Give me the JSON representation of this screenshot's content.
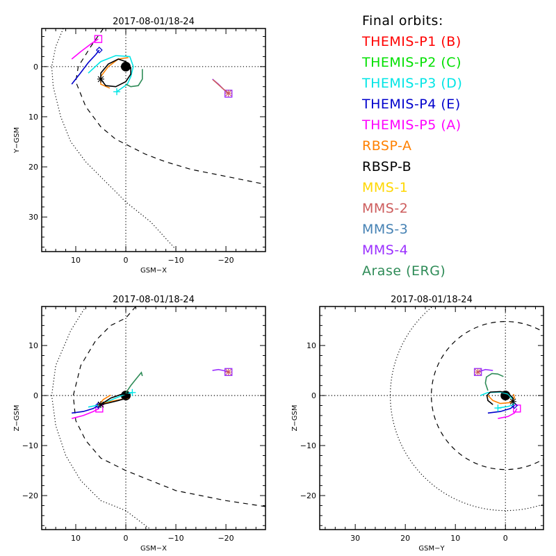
{
  "chart_data": [
    {
      "type": "scatter",
      "id": "xy",
      "title": "2017-08-01/18-24",
      "xlabel": "GSM-X",
      "ylabel": "Y-GSM",
      "xlim": [
        16.8,
        -27.9
      ],
      "ylim": [
        -7.6,
        36.9
      ],
      "xticks": [
        10,
        0,
        -10,
        -20
      ],
      "yticks": [
        0,
        10,
        20,
        30
      ],
      "boundaries": {
        "magnetopause_dashed": [
          [
            4.5,
            -7.6
          ],
          [
            7,
            -4
          ],
          [
            9.5,
            0
          ],
          [
            10,
            3
          ],
          [
            8,
            8
          ],
          [
            5,
            12
          ],
          [
            2,
            14.5
          ],
          [
            0,
            15.5
          ],
          [
            -4,
            17.5
          ],
          [
            -8,
            19
          ],
          [
            -13,
            20.5
          ],
          [
            -18,
            21.5
          ],
          [
            -22,
            22.3
          ],
          [
            -27.9,
            23.5
          ]
        ],
        "bow_shock_dotted": [
          [
            12.5,
            -7.6
          ],
          [
            14,
            -4
          ],
          [
            14.8,
            0
          ],
          [
            14.5,
            4
          ],
          [
            13,
            10
          ],
          [
            11,
            15
          ],
          [
            8,
            19
          ],
          [
            4,
            23
          ],
          [
            0,
            27
          ],
          [
            -5,
            31
          ],
          [
            -10,
            36.5
          ]
        ]
      },
      "series": [
        {
          "name": "THEMIS-P5 (A)",
          "color": "#ff00ff",
          "points": [
            [
              10.8,
              -1.5
            ],
            [
              9,
              -3
            ],
            [
              7,
              -4.5
            ],
            [
              5.5,
              -5.5
            ]
          ],
          "marker": "square"
        },
        {
          "name": "THEMIS-P4 (E)",
          "color": "#0000cc",
          "points": [
            [
              10.8,
              3.5
            ],
            [
              9,
              1.2
            ],
            [
              7.5,
              -0.8
            ],
            [
              6,
              -2.4
            ],
            [
              5.3,
              -3.3
            ]
          ],
          "marker": "diamond"
        },
        {
          "name": "THEMIS-P3 (D)",
          "color": "#00e5e5",
          "points": [
            [
              7.5,
              1.3
            ],
            [
              5,
              -1
            ],
            [
              2,
              -2.2
            ],
            [
              -0.8,
              -2
            ],
            [
              -1.5,
              0
            ],
            [
              -1,
              2
            ],
            [
              -0.3,
              3.5
            ],
            [
              1.8,
              5
            ]
          ],
          "marker": "plus"
        },
        {
          "name": "RBSP-A",
          "color": "#ff8000",
          "points": [
            [
              -0.5,
              -1.8
            ],
            [
              1.5,
              -1.5
            ],
            [
              3.5,
              0
            ],
            [
              5,
              2
            ],
            [
              5,
              3.5
            ],
            [
              3.2,
              4.3
            ]
          ],
          "marker": "none"
        },
        {
          "name": "RBSP-B",
          "color": "#000000",
          "points": [
            [
              5,
              2.5
            ],
            [
              4,
              3.8
            ],
            [
              2,
              4
            ],
            [
              0,
              3
            ],
            [
              -1,
              1.5
            ],
            [
              -1,
              0.2
            ],
            [
              0,
              -1
            ],
            [
              1.5,
              -1.5
            ],
            [
              3.5,
              -0.5
            ],
            [
              5,
              1.3
            ],
            [
              5,
              2.5
            ]
          ],
          "marker": "asterisk"
        },
        {
          "name": "Arase (ERG)",
          "color": "#2e8b57",
          "points": [
            [
              0,
              3.5
            ],
            [
              -1,
              4
            ],
            [
              -2.5,
              3.8
            ],
            [
              -3.3,
              2.5
            ],
            [
              -3.3,
              0.5
            ]
          ],
          "marker": "none"
        },
        {
          "name": "MMS-4",
          "color": "#9b30ff",
          "points": [
            [
              -17.3,
              2.5
            ],
            [
              -18.5,
              3.5
            ],
            [
              -19.5,
              4.5
            ],
            [
              -20.5,
              5.4
            ]
          ],
          "marker": "square"
        },
        {
          "name": "MMS-2",
          "color": "#cd5c5c",
          "points": [
            [
              -17.4,
              2.6
            ],
            [
              -19.5,
              4.5
            ],
            [
              -20.5,
              5.3
            ]
          ],
          "marker": "asterisk"
        }
      ]
    },
    {
      "type": "scatter",
      "id": "xz",
      "title": "2017-08-01/18-24",
      "xlabel": "GSM-X",
      "ylabel": "Z-GSM",
      "xlim": [
        16.8,
        -27.9
      ],
      "ylim": [
        17.8,
        -26.8
      ],
      "xticks": [
        10,
        0,
        -10,
        -20
      ],
      "yticks": [
        10,
        0,
        -10,
        -20
      ],
      "boundaries": {
        "magnetopause_dashed": [
          [
            -2,
            17.8
          ],
          [
            0,
            15.5
          ],
          [
            3,
            14
          ],
          [
            6,
            11
          ],
          [
            9,
            6
          ],
          [
            10.5,
            0
          ],
          [
            10,
            -5
          ],
          [
            8,
            -9
          ],
          [
            5,
            -12.5
          ],
          [
            0,
            -15
          ],
          [
            -5,
            -17
          ],
          [
            -10,
            -19
          ],
          [
            -15,
            -20
          ],
          [
            -20,
            -21
          ],
          [
            -27.9,
            -22.2
          ]
        ],
        "bow_shock_dotted": [
          [
            8,
            17.8
          ],
          [
            11,
            13
          ],
          [
            14,
            6
          ],
          [
            14.8,
            0
          ],
          [
            14,
            -6
          ],
          [
            12,
            -12
          ],
          [
            9,
            -17
          ],
          [
            5,
            -21
          ],
          [
            0,
            -23
          ],
          [
            -5,
            -26.8
          ]
        ]
      },
      "series": [
        {
          "name": "THEMIS-P5 (A)",
          "color": "#ff00ff",
          "points": [
            [
              10.8,
              -4.6
            ],
            [
              8.5,
              -4
            ],
            [
              6.5,
              -3.2
            ],
            [
              5.3,
              -2.6
            ]
          ],
          "marker": "square"
        },
        {
          "name": "THEMIS-P4 (E)",
          "color": "#0000cc",
          "points": [
            [
              10.8,
              -3.5
            ],
            [
              8.5,
              -3.2
            ],
            [
              6.5,
              -2.6
            ],
            [
              5.5,
              -2
            ]
          ],
          "marker": "diamond"
        },
        {
          "name": "THEMIS-P3 (D)",
          "color": "#00e5e5",
          "points": [
            [
              7.5,
              -2.3
            ],
            [
              5,
              -1.8
            ],
            [
              2,
              -0.5
            ],
            [
              0,
              0.3
            ],
            [
              -1.3,
              0.6
            ]
          ],
          "marker": "plus"
        },
        {
          "name": "RBSP-A",
          "color": "#ff8000",
          "points": [
            [
              3,
              0.1
            ],
            [
              4.5,
              -0.8
            ],
            [
              5.3,
              -1.8
            ],
            [
              3,
              -1.2
            ],
            [
              1,
              -0.8
            ],
            [
              -0.5,
              -0.5
            ]
          ],
          "marker": "none"
        },
        {
          "name": "RBSP-B",
          "color": "#000000",
          "points": [
            [
              5,
              -1.8
            ],
            [
              3,
              -0.5
            ],
            [
              1,
              0.2
            ],
            [
              -0.5,
              0.3
            ],
            [
              -0.8,
              0
            ],
            [
              -0.3,
              -0.5
            ],
            [
              1.5,
              -1
            ],
            [
              3.5,
              -1.5
            ],
            [
              5,
              -1.8
            ]
          ],
          "marker": "asterisk"
        },
        {
          "name": "Arase (ERG)",
          "color": "#2e8b57",
          "points": [
            [
              0,
              0.5
            ],
            [
              -1,
              2
            ],
            [
              -2.2,
              3.5
            ],
            [
              -3.1,
              4.6
            ],
            [
              -3.3,
              3.9
            ]
          ],
          "marker": "none"
        },
        {
          "name": "MMS-4",
          "color": "#9b30ff",
          "points": [
            [
              -17.3,
              5
            ],
            [
              -18.5,
              5.2
            ],
            [
              -19.5,
              5
            ],
            [
              -20.5,
              4.7
            ]
          ],
          "marker": "square"
        },
        {
          "name": "MMS-2",
          "color": "#cd5c5c",
          "points": [
            [
              -20.5,
              4.7
            ]
          ],
          "marker": "asterisk"
        }
      ]
    },
    {
      "type": "scatter",
      "id": "yz",
      "title": "2017-08-01/18-24",
      "xlabel": "GSM-Y",
      "ylabel": "Z-GSM",
      "xlim": [
        37.1,
        -7.6
      ],
      "ylim": [
        17.8,
        -26.8
      ],
      "xticks": [
        30,
        20,
        10,
        0
      ],
      "yticks": [
        10,
        0,
        -10,
        -20
      ],
      "boundaries": {
        "magnetopause_dashed_circle_radius": 14.8,
        "bow_shock_dotted_circle_radius": 23
      },
      "series": [
        {
          "name": "THEMIS-P5 (A)",
          "color": "#ff00ff",
          "points": [
            [
              1.5,
              -4.6
            ],
            [
              -0.5,
              -4.2
            ],
            [
              -1.8,
              -3.5
            ],
            [
              -2.3,
              -2.6
            ]
          ],
          "marker": "square"
        },
        {
          "name": "THEMIS-P4 (E)",
          "color": "#0000cc",
          "points": [
            [
              3.5,
              -3.5
            ],
            [
              1,
              -3.2
            ],
            [
              -1,
              -2.6
            ],
            [
              -1.8,
              -2
            ]
          ],
          "marker": "diamond"
        },
        {
          "name": "THEMIS-P3 (D)",
          "color": "#00e5e5",
          "points": [
            [
              5,
              0
            ],
            [
              3.5,
              0.6
            ],
            [
              1,
              0.7
            ],
            [
              -0.5,
              0.3
            ],
            [
              -1.5,
              -0.8
            ],
            [
              -1.7,
              -1.8
            ],
            [
              -0.5,
              -2.2
            ],
            [
              1.5,
              -2.5
            ]
          ],
          "marker": "plus"
        },
        {
          "name": "RBSP-A",
          "color": "#ff8000",
          "points": [
            [
              3.5,
              0
            ],
            [
              2.5,
              -1
            ],
            [
              1,
              -1.6
            ],
            [
              -1,
              -1.4
            ],
            [
              -1.8,
              -0.5
            ],
            [
              -1.6,
              0.3
            ]
          ],
          "marker": "none"
        },
        {
          "name": "RBSP-B",
          "color": "#000000",
          "points": [
            [
              2.5,
              -1.8
            ],
            [
              3.5,
              -1
            ],
            [
              3.7,
              0
            ],
            [
              3,
              0.7
            ],
            [
              1,
              0.8
            ],
            [
              -0.5,
              0.5
            ],
            [
              -1.5,
              -0.5
            ],
            [
              -1.5,
              -1.2
            ]
          ],
          "marker": "asterisk"
        },
        {
          "name": "Arase (ERG)",
          "color": "#2e8b57",
          "points": [
            [
              3.5,
              1
            ],
            [
              4,
              2.5
            ],
            [
              3.8,
              3.7
            ],
            [
              2.7,
              4.4
            ],
            [
              1.5,
              4.3
            ],
            [
              0.4,
              3.8
            ]
          ],
          "marker": "none"
        },
        {
          "name": "MMS-4",
          "color": "#9b30ff",
          "points": [
            [
              2.5,
              5
            ],
            [
              4,
              5.2
            ],
            [
              5.5,
              4.7
            ]
          ],
          "marker": "square"
        },
        {
          "name": "MMS-2",
          "color": "#cd5c5c",
          "points": [
            [
              5.5,
              4.7
            ]
          ],
          "marker": "asterisk"
        }
      ]
    }
  ],
  "legend": {
    "heading": "Final orbits:",
    "items": [
      {
        "label": "THEMIS-P1 (B)",
        "color": "#ff0000"
      },
      {
        "label": "THEMIS-P2 (C)",
        "color": "#00e000"
      },
      {
        "label": "THEMIS-P3 (D)",
        "color": "#00e5e5"
      },
      {
        "label": "THEMIS-P4 (E)",
        "color": "#0000cc"
      },
      {
        "label": "THEMIS-P5 (A)",
        "color": "#ff00ff"
      },
      {
        "label": "RBSP-A",
        "color": "#ff8000"
      },
      {
        "label": "RBSP-B",
        "color": "#000000"
      },
      {
        "label": "MMS-1",
        "color": "#ffd700"
      },
      {
        "label": "MMS-2",
        "color": "#cd5c5c"
      },
      {
        "label": "MMS-3",
        "color": "#4682b4"
      },
      {
        "label": "MMS-4",
        "color": "#9b30ff"
      },
      {
        "label": "Arase (ERG)",
        "color": "#2e8b57"
      }
    ]
  }
}
